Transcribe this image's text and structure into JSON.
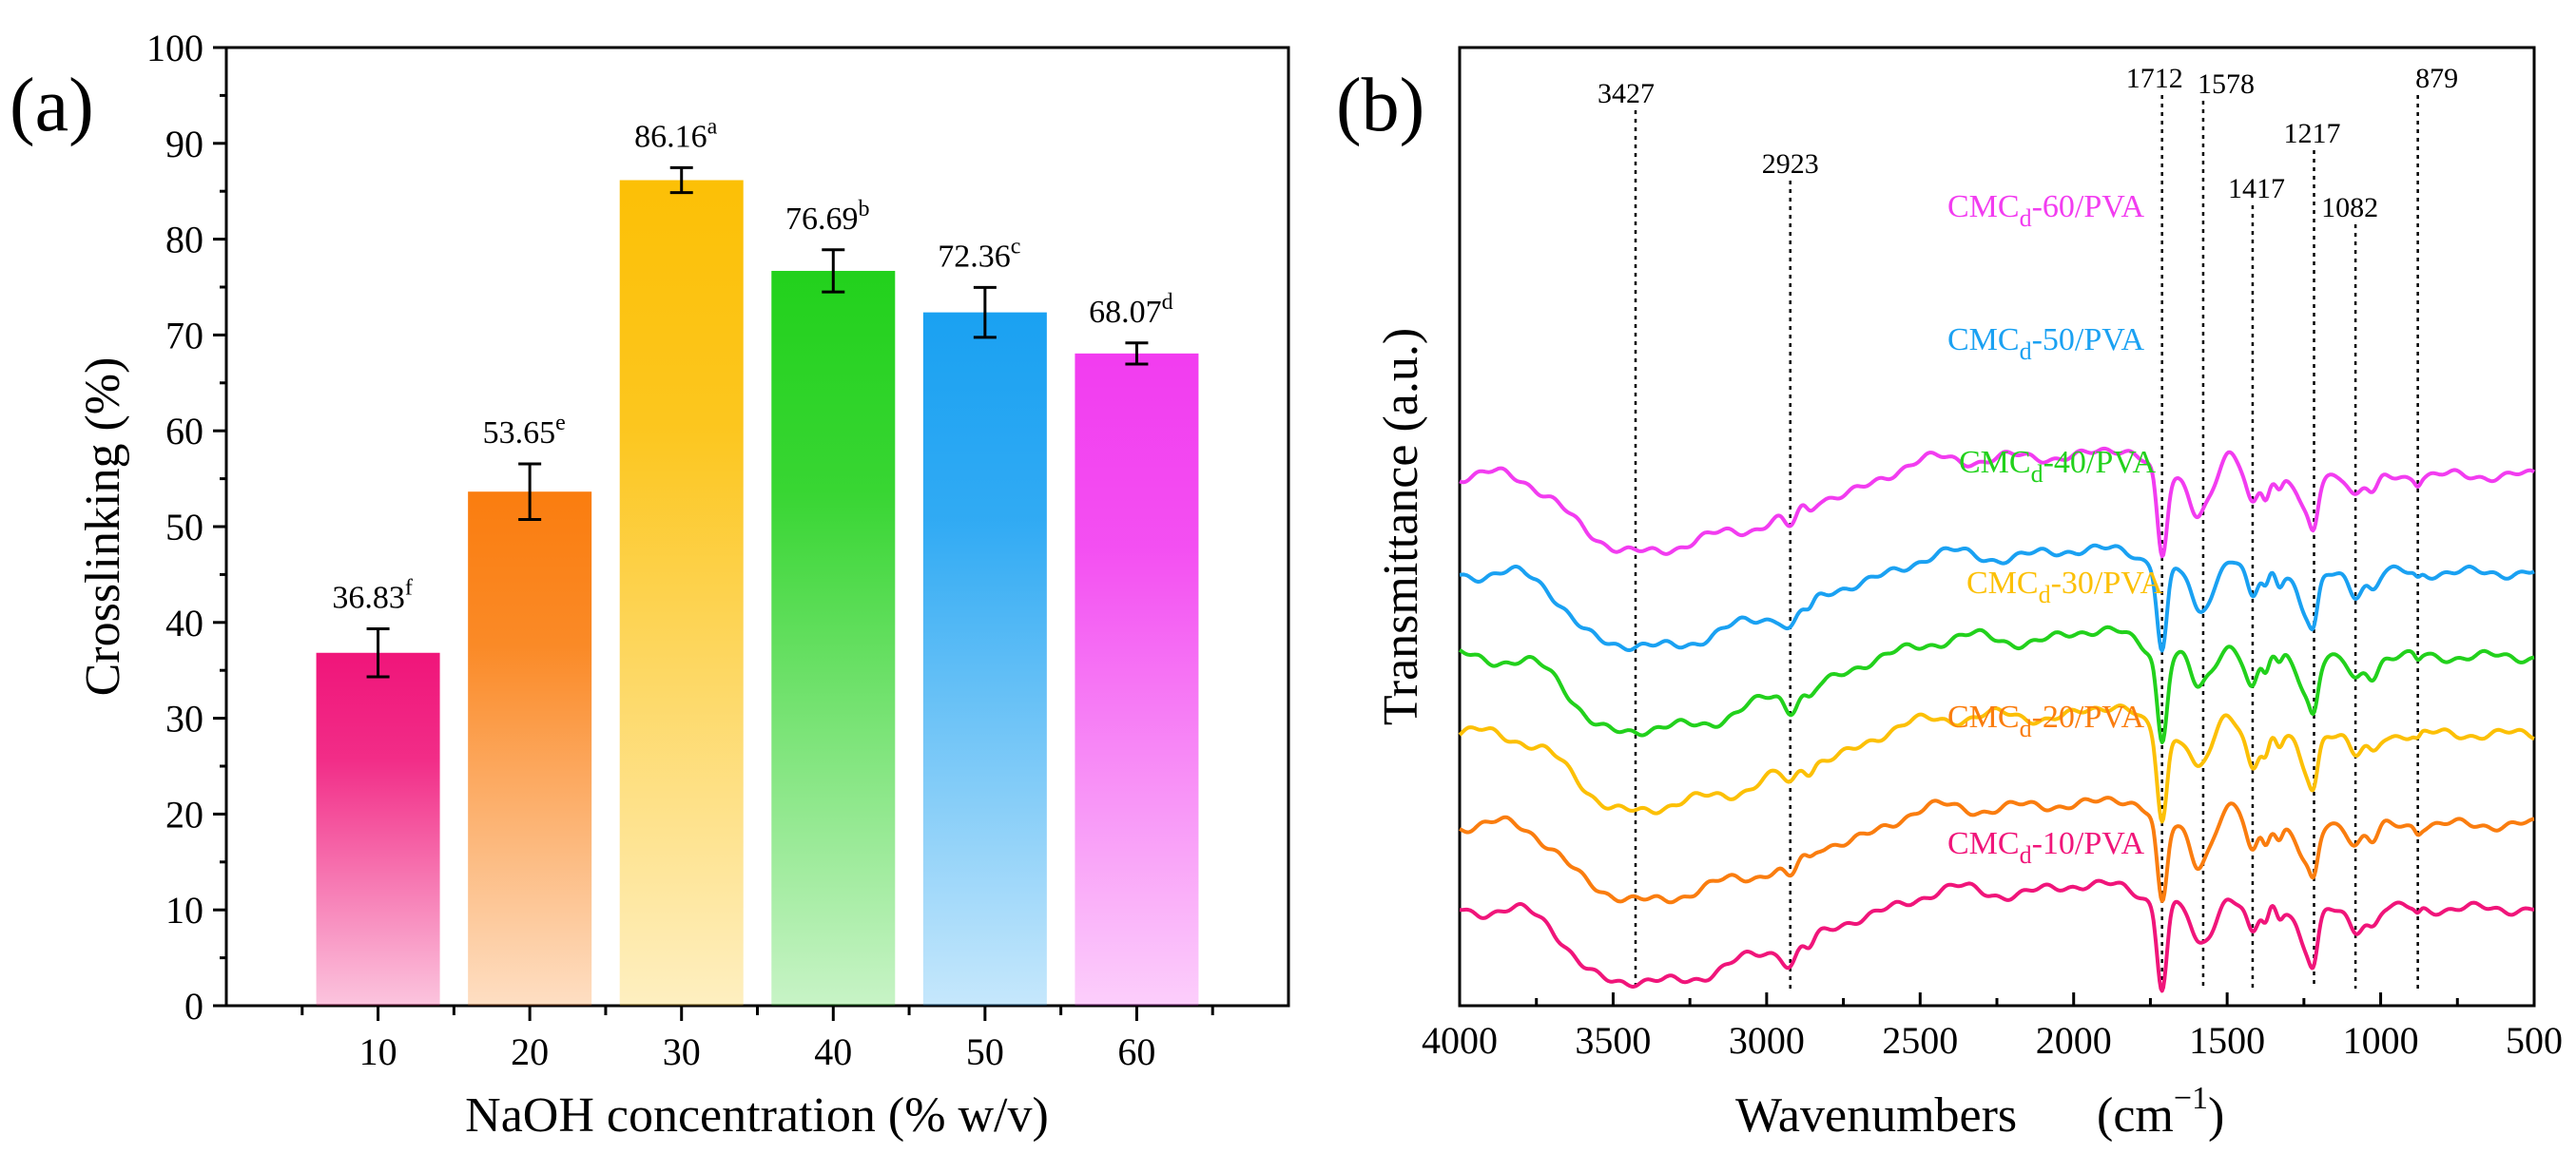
{
  "chart_data": [
    {
      "type": "bar",
      "panel_label": "(a)",
      "xlabel": "NaOH concentration (% w/v)",
      "ylabel": "Crosslinking (%)",
      "ylim": [
        0,
        100
      ],
      "yticks": [
        "0",
        "10",
        "20",
        "30",
        "40",
        "50",
        "60",
        "70",
        "80",
        "90",
        "100"
      ],
      "categories": [
        "10",
        "20",
        "30",
        "40",
        "50",
        "60"
      ],
      "values": [
        36.83,
        53.65,
        86.16,
        76.69,
        72.36,
        68.07
      ],
      "errors": [
        2.5,
        2.9,
        1.3,
        2.2,
        2.6,
        1.1
      ],
      "value_labels": [
        "36.83",
        "53.65",
        "86.16",
        "76.69",
        "72.36",
        "68.07"
      ],
      "significance": [
        "f",
        "e",
        "a",
        "b",
        "c",
        "d"
      ],
      "colors": [
        "#f0157a",
        "#fa7d0f",
        "#fcc006",
        "#22d11c",
        "#1aa1f2",
        "#f23cf0"
      ]
    },
    {
      "type": "line",
      "panel_label": "(b)",
      "xlabel": "Wavenumbers",
      "xlabel_unit": "cm",
      "xlabel_unit_exp": "−1",
      "ylabel": "Transmittance (a.u.)",
      "xlim": [
        4000,
        500
      ],
      "xticks": [
        "4000",
        "3500",
        "3000",
        "2500",
        "2000",
        "1500",
        "1000",
        "500"
      ],
      "reference_peaks": [
        {
          "wn": 3427,
          "label": "3427"
        },
        {
          "wn": 2923,
          "label": "2923"
        },
        {
          "wn": 1712,
          "label": "1712"
        },
        {
          "wn": 1578,
          "label": "1578"
        },
        {
          "wn": 1417,
          "label": "1417"
        },
        {
          "wn": 1217,
          "label": "1217"
        },
        {
          "wn": 1082,
          "label": "1082"
        },
        {
          "wn": 879,
          "label": "879"
        }
      ],
      "series": [
        {
          "prefix": "CMC",
          "sub": "d",
          "suffix": "-60/PVA",
          "color": "#f23cf0",
          "baseline": 82
        },
        {
          "prefix": "CMC",
          "sub": "d",
          "suffix": "-50/PVA",
          "color": "#1aa1f2",
          "baseline": 67
        },
        {
          "prefix": "CMC",
          "sub": "d",
          "suffix": "-40/PVA",
          "color": "#22d11c",
          "baseline": 54
        },
        {
          "prefix": "CMC",
          "sub": "d",
          "suffix": "-30/PVA",
          "color": "#fcc006",
          "baseline": 42
        },
        {
          "prefix": "CMC",
          "sub": "d",
          "suffix": "-20/PVA",
          "color": "#fa7d0f",
          "baseline": 28
        },
        {
          "prefix": "CMC",
          "sub": "d",
          "suffix": "-10/PVA",
          "color": "#f0157a",
          "baseline": 15
        }
      ]
    }
  ]
}
